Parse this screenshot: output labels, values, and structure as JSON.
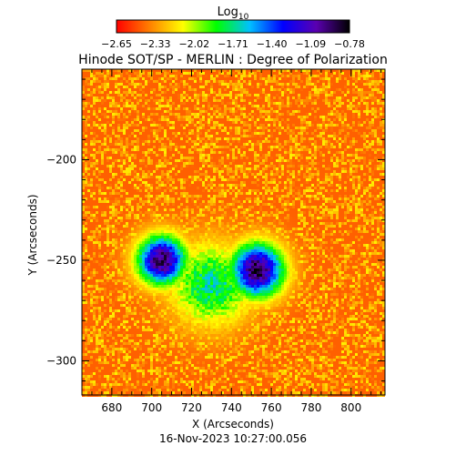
{
  "chart_data": {
    "type": "heatmap",
    "title": "Hinode SOT/SP - MERLIN : Degree of Polarization",
    "timestamp": "16-Nov-2023 10:27:00.056",
    "xlabel": "X (Arcseconds)",
    "ylabel": "Y (Arcseconds)",
    "xlim": [
      665,
      817
    ],
    "ylim": [
      -317,
      -155
    ],
    "x_ticks": [
      680,
      700,
      720,
      740,
      760,
      780,
      800
    ],
    "y_ticks": [
      -200,
      -250,
      -300
    ],
    "colorbar": {
      "label_base": "Log",
      "label_sub": "10",
      "range": [
        -2.65,
        -0.78
      ],
      "tick_labels": [
        "-2.65",
        "-2.33",
        "-2.02",
        "-1.71",
        "-1.40",
        "-1.09",
        "-0.78"
      ],
      "colors": [
        "#ff0000",
        "#ff8000",
        "#ffff00",
        "#00ff00",
        "#00c0ff",
        "#0000ff",
        "#5a00b0",
        "#000000"
      ]
    },
    "background_level": -2.45,
    "features": [
      {
        "name": "left active region",
        "x": 705,
        "y": -250,
        "peak": -0.9,
        "radius": 12
      },
      {
        "name": "right active region",
        "x": 753,
        "y": -255,
        "peak": -0.85,
        "radius": 13
      },
      {
        "name": "plage bridge",
        "x": 730,
        "y": -262,
        "peak": -1.7,
        "radius": 20
      }
    ]
  }
}
